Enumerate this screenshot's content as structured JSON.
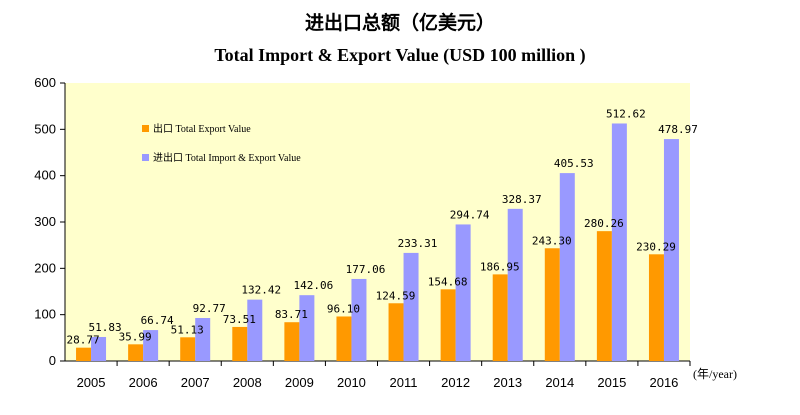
{
  "chart_data": {
    "type": "bar",
    "title": "进出口总额（亿美元）",
    "subtitle": "Total Import & Export Value (USD 100 million )",
    "xlabel": "(年/year)",
    "ylabel": "",
    "ylim": [
      0,
      600
    ],
    "yticks": [
      "0",
      "100",
      "200",
      "300",
      "400",
      "500",
      "600"
    ],
    "grid": false,
    "legend_position": "top-left",
    "categories": [
      "2005",
      "2006",
      "2007",
      "2008",
      "2009",
      "2010",
      "2011",
      "2012",
      "2013",
      "2014",
      "2015",
      "2016"
    ],
    "series": [
      {
        "name": "出口 Total Export Value",
        "color": "#FF9900",
        "values": [
          28.77,
          35.99,
          51.13,
          73.51,
          83.71,
          96.1,
          124.59,
          154.68,
          186.95,
          243.3,
          280.26,
          230.29
        ],
        "labels": [
          "28.77",
          "35.99",
          "51.13",
          "73.51",
          "83.71",
          "96.10",
          "124.59",
          "154.68",
          "186.95",
          "243.30",
          "280.26",
          "230.29"
        ]
      },
      {
        "name": "进出口 Total Import & Export Value",
        "color": "#9999FF",
        "values": [
          51.83,
          66.74,
          92.77,
          132.42,
          142.06,
          177.06,
          233.31,
          294.74,
          328.37,
          405.53,
          512.62,
          478.97
        ],
        "labels": [
          "51.83",
          "66.74",
          "92.77",
          "132.42",
          "142.06",
          "177.06",
          "233.31",
          "294.74",
          "328.37",
          "405.53",
          "512.62",
          "478.97"
        ]
      }
    ],
    "plot_background": "#FFFFCC"
  }
}
